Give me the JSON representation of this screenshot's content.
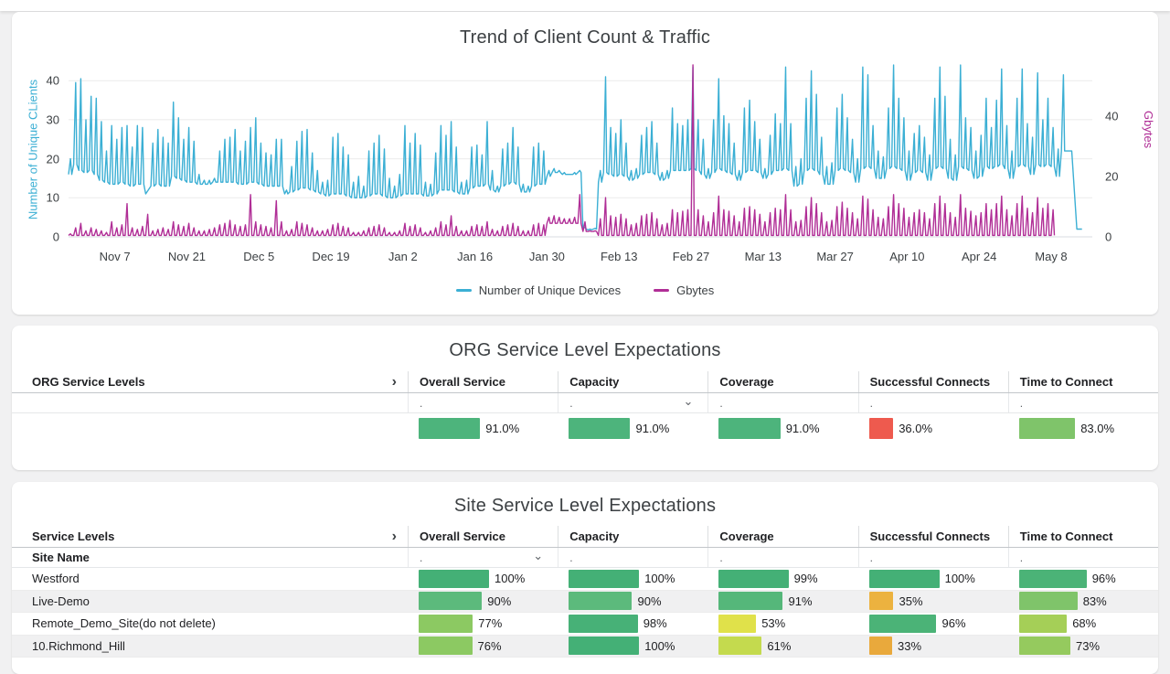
{
  "chart_card": {
    "title": "Trend of Client Count & Traffic",
    "chart_data": {
      "type": "line",
      "title": "Trend of Client Count & Traffic",
      "grid": true,
      "legend_position": "bottom",
      "y_left": {
        "label": "Number of Unique CLients",
        "color": "#3bafd4",
        "ticks": [
          0,
          10,
          20,
          30,
          40
        ],
        "max": 44.5
      },
      "y_right": {
        "label": "Gbytes",
        "color": "#b02e96",
        "ticks": [
          0,
          20,
          40
        ],
        "max": 57.6
      },
      "x_ticks": [
        "Nov 7",
        "Nov 21",
        "Dec 5",
        "Dec 19",
        "Jan 2",
        "Jan 16",
        "Jan 30",
        "Feb 13",
        "Feb 27",
        "Mar 13",
        "Mar 27",
        "Apr 10",
        "Apr 24",
        "May 8"
      ],
      "x_tick_days": [
        9,
        23,
        37,
        51,
        65,
        79,
        93,
        107,
        121,
        135,
        149,
        163,
        177,
        191
      ],
      "days_total": 199,
      "series": [
        {
          "name": "Number of Unique Devices",
          "color": "#3bafd4",
          "axis": "left",
          "peak": [
            20,
            39.5,
            40.5,
            30,
            36,
            35.5,
            29.5,
            22,
            28.5,
            25,
            28,
            28.5,
            23,
            28.5,
            28,
            11,
            24,
            27.5,
            25.5,
            24,
            34.5,
            30.5,
            25,
            28,
            24.5,
            16,
            14.5,
            14.5,
            15,
            22,
            25,
            25.5,
            27.5,
            22,
            24.5,
            28,
            30.5,
            24,
            21.5,
            21,
            25,
            25,
            12,
            18,
            24.5,
            27,
            27.5,
            21.5,
            17,
            14,
            14.5,
            25.5,
            26.5,
            23,
            21,
            14,
            15.5,
            13,
            22,
            24,
            26,
            22.5,
            15,
            13,
            16,
            28.5,
            24,
            26.5,
            23.5,
            14,
            13.5,
            21.5,
            28.5,
            26,
            29.5,
            23,
            14,
            14.5,
            23,
            23.5,
            21,
            29.5,
            17,
            13,
            22.5,
            24,
            28,
            23,
            13.5,
            13,
            23,
            24,
            22,
            17,
            17.5,
            17,
            16.5,
            16,
            16.5,
            17,
            2.5,
            2,
            2.2,
            17,
            41,
            28,
            26.5,
            30,
            24,
            17,
            17.5,
            26,
            28,
            29.5,
            24,
            16.5,
            17,
            33,
            29,
            28.5,
            30,
            43.5,
            30,
            25,
            17.5,
            30,
            40.5,
            31,
            29,
            24,
            17,
            33,
            35,
            29.5,
            25,
            17.5,
            26,
            31.5,
            29,
            43.5,
            29,
            18,
            20,
            35.5,
            42.5,
            36.5,
            25.5,
            18,
            19,
            33,
            36.5,
            30.5,
            25,
            20,
            43.5,
            41.5,
            28.5,
            22,
            20.5,
            33,
            44,
            35.5,
            30.5,
            22,
            26.5,
            28.5,
            25.5,
            21,
            35.5,
            43.5,
            36,
            25,
            21,
            44,
            30.5,
            28,
            22,
            26,
            35.5,
            28,
            35,
            43,
            28.5,
            22,
            35.5,
            43,
            29,
            25.5,
            42,
            30,
            35.5,
            28,
            22.5,
            41.5,
            22,
            22,
            2,
            2
          ],
          "base": [
            16,
            18.5,
            17,
            16.5,
            17,
            16,
            14.5,
            14,
            13.5,
            13.5,
            14,
            13.5,
            13,
            13.5,
            13.5,
            11,
            13,
            13.5,
            13,
            13,
            15.5,
            15,
            14.5,
            14,
            14,
            13.5,
            13.5,
            13.5,
            14,
            14,
            14,
            14,
            14,
            13.5,
            13.5,
            14,
            14,
            13.5,
            13,
            13,
            13,
            13,
            11,
            11.5,
            12,
            12.5,
            12.5,
            12,
            11.5,
            11,
            10.5,
            11,
            11,
            11,
            10.5,
            10,
            10,
            10,
            10.5,
            11,
            11,
            10.5,
            10,
            10,
            10.5,
            11,
            11,
            11,
            11,
            10.5,
            10.5,
            11,
            12,
            12,
            12,
            11.5,
            11,
            11,
            12.5,
            13,
            13,
            13.5,
            12,
            11.5,
            13,
            13.5,
            14,
            13.5,
            11.5,
            11.5,
            13,
            13.5,
            13.5,
            15.5,
            16.5,
            16.5,
            16,
            16,
            16,
            16.5,
            2,
            1.8,
            2,
            14,
            16.5,
            16,
            15.5,
            16,
            15.5,
            14.5,
            15,
            16,
            16.5,
            16.5,
            16,
            14.5,
            15,
            17,
            17,
            17,
            17,
            17.5,
            17,
            16,
            15,
            16.5,
            17.5,
            17,
            16.5,
            16,
            14.5,
            16.5,
            17,
            17,
            16.5,
            15,
            16,
            17,
            17,
            17.5,
            17,
            13,
            13.5,
            17,
            17.5,
            17,
            16,
            13.5,
            13.5,
            17,
            17.5,
            17,
            16.5,
            14,
            17.5,
            18,
            17.5,
            15,
            15,
            17.5,
            18,
            17.5,
            17,
            14.5,
            16.5,
            17,
            16.5,
            14.5,
            17.5,
            18,
            17.5,
            15,
            14.5,
            18,
            17.5,
            17,
            15,
            15.5,
            18,
            17.5,
            18,
            18.5,
            17.5,
            15,
            18,
            18.5,
            18,
            16,
            18.5,
            18,
            18.5,
            18,
            15.5,
            22,
            22,
            22,
            2,
            2
          ]
        },
        {
          "name": "Gbytes",
          "color": "#b02e96",
          "axis": "right",
          "peak": [
            1,
            3,
            4.5,
            2,
            3,
            2.5,
            2,
            1.5,
            5,
            3,
            4,
            11,
            3,
            2.5,
            3.5,
            7.5,
            2,
            2.5,
            3,
            2.5,
            5,
            4,
            3.5,
            4.5,
            3,
            2,
            2,
            2.5,
            3,
            4,
            4.5,
            5.5,
            4,
            3.5,
            4,
            14,
            5,
            4,
            3.5,
            3,
            12,
            5,
            2,
            2.5,
            5,
            4.5,
            4,
            3,
            2,
            2,
            2.5,
            4,
            4.5,
            3.5,
            3,
            1.5,
            1.5,
            2,
            3,
            3.5,
            4,
            3,
            1.5,
            1.5,
            2,
            4.5,
            3.5,
            4,
            3,
            1.5,
            2,
            3,
            5,
            4,
            7,
            3.5,
            2,
            2,
            3.5,
            4,
            3.5,
            5,
            2.5,
            2,
            3.5,
            4,
            4.5,
            3.5,
            2,
            2,
            4,
            4.5,
            4,
            6.5,
            7,
            6.5,
            6,
            6,
            6.5,
            14,
            5,
            2,
            2,
            6,
            13,
            7,
            6.5,
            7.5,
            6,
            4,
            4.5,
            7,
            7.5,
            8,
            6,
            4,
            4.5,
            9,
            8,
            8.5,
            9,
            57,
            9,
            7,
            5,
            8,
            13.5,
            9,
            8.5,
            7,
            5,
            9.5,
            10,
            9,
            7.5,
            5,
            8,
            9.5,
            9,
            14,
            9,
            5,
            5.5,
            10,
            13,
            11,
            8,
            5,
            5.5,
            10,
            11.5,
            9.5,
            8,
            6,
            13.5,
            12.5,
            9,
            6.5,
            6,
            10,
            14,
            11,
            9.5,
            6.5,
            8,
            9,
            8,
            6,
            11,
            13.5,
            11,
            8,
            6.5,
            14,
            9.5,
            8.5,
            7,
            8,
            11,
            9,
            11,
            13.5,
            9,
            7,
            11,
            13.5,
            9.5,
            8,
            13,
            9.5,
            11,
            9,
            7,
            13,
            7,
            6.5,
            1,
            0.5
          ],
          "base": [
            0.5,
            0.5,
            0.5,
            0.5,
            0.5,
            0.5,
            0.5,
            0.5,
            0.5,
            0.5,
            0.5,
            0.5,
            0.5,
            0.5,
            0.5,
            0.5,
            0.5,
            0.5,
            0.5,
            0.5,
            0.5,
            0.5,
            0.5,
            0.5,
            0.5,
            0.5,
            0.5,
            0.5,
            0.5,
            0.5,
            0.5,
            0.5,
            0.5,
            0.5,
            0.5,
            0.5,
            0.5,
            0.5,
            0.5,
            0.5,
            0.5,
            0.5,
            0.5,
            0.5,
            0.5,
            0.5,
            0.5,
            0.5,
            0.5,
            0.5,
            0.5,
            0.5,
            0.5,
            0.5,
            0.5,
            0.5,
            0.5,
            0.5,
            0.5,
            0.5,
            0.5,
            0.5,
            0.5,
            0.5,
            0.5,
            0.5,
            0.5,
            0.5,
            0.5,
            0.5,
            0.5,
            0.5,
            0.5,
            0.5,
            0.5,
            0.5,
            0.5,
            0.5,
            0.5,
            0.5,
            0.5,
            0.5,
            0.5,
            0.5,
            0.5,
            0.5,
            0.5,
            0.5,
            0.5,
            0.5,
            0.5,
            0.5,
            0.5,
            4.5,
            4.5,
            4.5,
            4.5,
            4.5,
            4.5,
            4.5,
            1.8,
            1.8,
            1.8,
            0.5,
            0.5,
            0.5,
            0.5,
            0.5,
            0.5,
            0.5,
            0.5,
            0.5,
            0.5,
            0.5,
            0.5,
            0.5,
            0.5,
            0.5,
            0.5,
            0.5,
            0.5,
            0.5,
            0.5,
            0.5,
            0.5,
            0.5,
            0.5,
            0.5,
            0.5,
            0.5,
            0.5,
            0.5,
            0.5,
            0.5,
            0.5,
            0.5,
            0.5,
            0.5,
            0.5,
            0.5,
            0.5,
            0.5,
            0.5,
            0.5,
            0.5,
            0.5,
            0.5,
            0.5,
            0.5,
            0.5,
            0.5,
            0.5,
            0.5,
            0.5,
            0.5,
            0.5,
            0.5,
            0.5,
            0.5,
            0.5,
            0.5,
            0.5,
            0.5,
            0.5,
            0.5,
            0.5,
            0.5,
            0.5,
            0.5,
            0.5,
            0.5,
            0.5,
            0.5,
            0.5,
            0.5,
            0.5,
            0.5,
            0.5,
            0.5,
            0.5,
            0.5,
            0.5,
            0.5,
            0.5,
            0.5,
            0.5,
            0.5,
            0.5,
            0.5,
            0.5,
            0.5,
            0.5
          ]
        }
      ],
      "legend": [
        "Number of Unique Devices",
        "Gbytes"
      ]
    }
  },
  "org_table": {
    "title": "ORG Service Level Expectations",
    "name_header": "ORG Service Levels",
    "expand_chevron": "›",
    "dropdown_chevron": "⌄",
    "columns": [
      "Overall Service",
      "Capacity",
      "Coverage",
      "Successful Connects",
      "Time to Connect"
    ],
    "filter_placeholder": ".",
    "filter_dropdown_column": 1,
    "rows": [
      {
        "name": "",
        "cells": [
          {
            "label": "91.0%",
            "value": 91,
            "color": "#4db47c"
          },
          {
            "label": "91.0%",
            "value": 91,
            "color": "#4db47c"
          },
          {
            "label": "91.0%",
            "value": 91,
            "color": "#4db47c"
          },
          {
            "label": "36.0%",
            "value": 36,
            "color": "#ee5a4e"
          },
          {
            "label": "83.0%",
            "value": 83,
            "color": "#7fc46a"
          }
        ]
      }
    ]
  },
  "site_table": {
    "title": "Site Service Level Expectations",
    "name_header": "Service Levels",
    "subheader": "Site Name",
    "expand_chevron": "›",
    "dropdown_chevron": "⌄",
    "columns": [
      "Overall Service",
      "Capacity",
      "Coverage",
      "Successful Connects",
      "Time to Connect"
    ],
    "filter_placeholder": ".",
    "filter_dropdown_column": 0,
    "rows": [
      {
        "name": "Westford",
        "cells": [
          {
            "label": "100%",
            "value": 100,
            "color": "#44b076"
          },
          {
            "label": "100%",
            "value": 100,
            "color": "#44b076"
          },
          {
            "label": "99%",
            "value": 99,
            "color": "#44b076"
          },
          {
            "label": "100%",
            "value": 100,
            "color": "#44b076"
          },
          {
            "label": "96%",
            "value": 96,
            "color": "#4bb377"
          }
        ]
      },
      {
        "name": "Live-Demo",
        "cells": [
          {
            "label": "90%",
            "value": 90,
            "color": "#5cba7c"
          },
          {
            "label": "90%",
            "value": 90,
            "color": "#5cba7c"
          },
          {
            "label": "91%",
            "value": 91,
            "color": "#55b77a"
          },
          {
            "label": "35%",
            "value": 35,
            "color": "#ecb23f"
          },
          {
            "label": "83%",
            "value": 83,
            "color": "#7fc46a"
          }
        ]
      },
      {
        "name": "Remote_Demo_Site(do not delete)",
        "cells": [
          {
            "label": "77%",
            "value": 77,
            "color": "#8cc962"
          },
          {
            "label": "98%",
            "value": 98,
            "color": "#47b177"
          },
          {
            "label": "53%",
            "value": 53,
            "color": "#e0e14a"
          },
          {
            "label": "96%",
            "value": 96,
            "color": "#4bb377"
          },
          {
            "label": "68%",
            "value": 68,
            "color": "#a5cf57"
          }
        ]
      },
      {
        "name": "10.Richmond_Hill",
        "cells": [
          {
            "label": "76%",
            "value": 76,
            "color": "#8cc962"
          },
          {
            "label": "100%",
            "value": 100,
            "color": "#44b076"
          },
          {
            "label": "61%",
            "value": 61,
            "color": "#c4da4e"
          },
          {
            "label": "33%",
            "value": 33,
            "color": "#e9a93c"
          },
          {
            "label": "73%",
            "value": 73,
            "color": "#95ca5e"
          }
        ]
      }
    ]
  }
}
